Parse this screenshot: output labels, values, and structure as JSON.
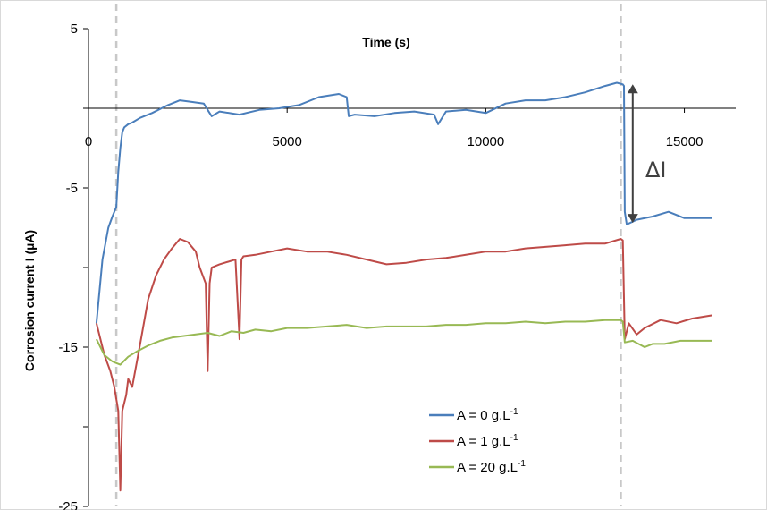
{
  "chart_data": {
    "type": "line",
    "title": "",
    "xlabel": "Time (s)",
    "ylabel": "Corrosion current I (µA)",
    "xlim": [
      0,
      16000
    ],
    "ylim": [
      -25,
      5
    ],
    "x_ticks": [
      "0",
      "5000",
      "10000",
      "15000"
    ],
    "x_tick_values": [
      0,
      5000,
      10000,
      15000
    ],
    "y_ticks": [
      "5",
      "-5",
      "-15",
      "-25"
    ],
    "y_tick_values": [
      5,
      -5,
      -15,
      -25
    ],
    "grid": false,
    "legend_position": "bottom-center",
    "series": [
      {
        "name": "A = 0 g.L",
        "name_sup": "-1",
        "color": "#4a7ebb",
        "x": [
          200,
          350,
          500,
          600,
          700,
          750,
          800,
          850,
          900,
          1000,
          1100,
          1300,
          1600,
          2000,
          2300,
          2600,
          2900,
          3050,
          3100,
          3300,
          3800,
          4300,
          4800,
          5300,
          5800,
          6300,
          6500,
          6550,
          6700,
          7200,
          7700,
          8200,
          8700,
          8800,
          9000,
          9500,
          10000,
          10500,
          11000,
          11500,
          12000,
          12500,
          13000,
          13300,
          13450,
          13480,
          13500,
          13550,
          13800,
          14200,
          14600,
          15000,
          15400,
          15700
        ],
        "y": [
          -13.5,
          -9.5,
          -7.5,
          -6.8,
          -6.2,
          -4.0,
          -2.5,
          -1.5,
          -1.2,
          -1.0,
          -0.9,
          -0.6,
          -0.3,
          0.2,
          0.5,
          0.4,
          0.3,
          -0.3,
          -0.5,
          -0.2,
          -0.4,
          -0.1,
          0.0,
          0.2,
          0.7,
          0.9,
          0.7,
          -0.5,
          -0.4,
          -0.5,
          -0.3,
          -0.2,
          -0.4,
          -1.0,
          -0.2,
          -0.1,
          -0.3,
          0.3,
          0.5,
          0.5,
          0.7,
          1.0,
          1.4,
          1.6,
          1.5,
          1.4,
          -6.5,
          -7.3,
          -7.0,
          -6.8,
          -6.5,
          -6.9,
          -6.9,
          -6.9
        ]
      },
      {
        "name": "A = 1 g.L",
        "name_sup": "-1",
        "color": "#be4b48",
        "x": [
          200,
          400,
          550,
          650,
          750,
          800,
          850,
          900,
          950,
          1000,
          1100,
          1300,
          1500,
          1700,
          1900,
          2100,
          2300,
          2500,
          2700,
          2800,
          2950,
          3000,
          3050,
          3100,
          3300,
          3700,
          3800,
          3850,
          3900,
          4200,
          4600,
          5000,
          5500,
          6000,
          6500,
          7000,
          7500,
          8000,
          8500,
          9000,
          9500,
          10000,
          10500,
          11000,
          11500,
          12000,
          12500,
          13000,
          13400,
          13450,
          13500,
          13600,
          13800,
          14000,
          14400,
          14800,
          15200,
          15700
        ],
        "y": [
          -13.5,
          -15.5,
          -16.5,
          -17.5,
          -19.0,
          -24.0,
          -19.0,
          -18.5,
          -18.0,
          -17.0,
          -17.5,
          -14.8,
          -12.0,
          -10.5,
          -9.5,
          -8.8,
          -8.2,
          -8.4,
          -9.0,
          -10.0,
          -11.0,
          -16.5,
          -11.0,
          -10.0,
          -9.8,
          -9.5,
          -14.5,
          -9.5,
          -9.3,
          -9.2,
          -9.0,
          -8.8,
          -9.0,
          -9.0,
          -9.2,
          -9.5,
          -9.8,
          -9.7,
          -9.5,
          -9.4,
          -9.2,
          -9.0,
          -9.0,
          -8.8,
          -8.7,
          -8.6,
          -8.5,
          -8.5,
          -8.2,
          -8.3,
          -14.5,
          -13.5,
          -14.2,
          -13.8,
          -13.3,
          -13.5,
          -13.2,
          -13.0
        ]
      },
      {
        "name": "A = 20 g.L",
        "name_sup": "-1",
        "color": "#98b954",
        "x": [
          200,
          400,
          600,
          800,
          1000,
          1200,
          1500,
          1800,
          2100,
          2400,
          2700,
          3000,
          3300,
          3600,
          3900,
          4200,
          4600,
          5000,
          5500,
          6000,
          6500,
          7000,
          7500,
          8000,
          8500,
          9000,
          9500,
          10000,
          10500,
          11000,
          11500,
          12000,
          12500,
          13000,
          13400,
          13450,
          13500,
          13700,
          14000,
          14200,
          14500,
          14900,
          15300,
          15700
        ],
        "y": [
          -14.5,
          -15.5,
          -15.9,
          -16.1,
          -15.6,
          -15.3,
          -14.9,
          -14.6,
          -14.4,
          -14.3,
          -14.2,
          -14.1,
          -14.3,
          -14.0,
          -14.1,
          -13.9,
          -14.0,
          -13.8,
          -13.8,
          -13.7,
          -13.6,
          -13.8,
          -13.7,
          -13.7,
          -13.7,
          -13.6,
          -13.6,
          -13.5,
          -13.5,
          -13.4,
          -13.5,
          -13.4,
          -13.4,
          -13.3,
          -13.3,
          -13.4,
          -14.7,
          -14.6,
          -15.0,
          -14.8,
          -14.8,
          -14.6,
          -14.6,
          -14.6
        ]
      }
    ],
    "dashed_reference_lines_x": [
      700,
      13400
    ],
    "annotation": {
      "text": "ΔI",
      "x": 13700,
      "y_from": 1.5,
      "y_to": -7.2
    }
  }
}
